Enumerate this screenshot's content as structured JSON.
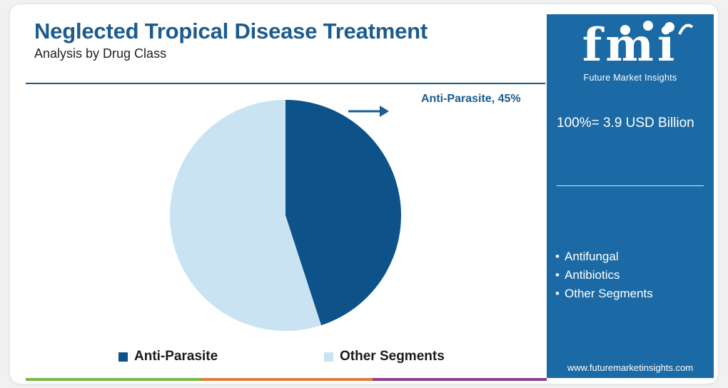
{
  "header": {
    "title": "Neglected Tropical Disease Treatment",
    "subtitle": "Analysis by Drug Class"
  },
  "chart_data": {
    "type": "pie",
    "title": "Neglected Tropical Disease Treatment",
    "subtitle": "Analysis by Drug Class",
    "slices": [
      {
        "label": "Anti-Parasite",
        "value": 45,
        "color": "#0d5389"
      },
      {
        "label": "Other Segments",
        "value": 55,
        "color": "#c9e3f3"
      }
    ],
    "slice_label": "Anti-Parasite, 45%",
    "legend": [
      "Anti-Parasite",
      "Other Segments"
    ],
    "legend_placement": "bottom"
  },
  "sidebar": {
    "logo_text": "fmi",
    "logo_subtext": "Future Market Insights",
    "total": "100%= 3.9 USD Billion",
    "items": [
      "Antifungal",
      "Antibiotics",
      "Other Segments"
    ],
    "bullet": "•",
    "website": "www.futuremarketinsights.com"
  },
  "colors": {
    "brand_blue": "#1c5b8e",
    "sidebar_bg": "#1b6aa5",
    "bar_green": "#7ab648",
    "bar_orange": "#e07b3c",
    "bar_purple": "#8a3f8f"
  }
}
